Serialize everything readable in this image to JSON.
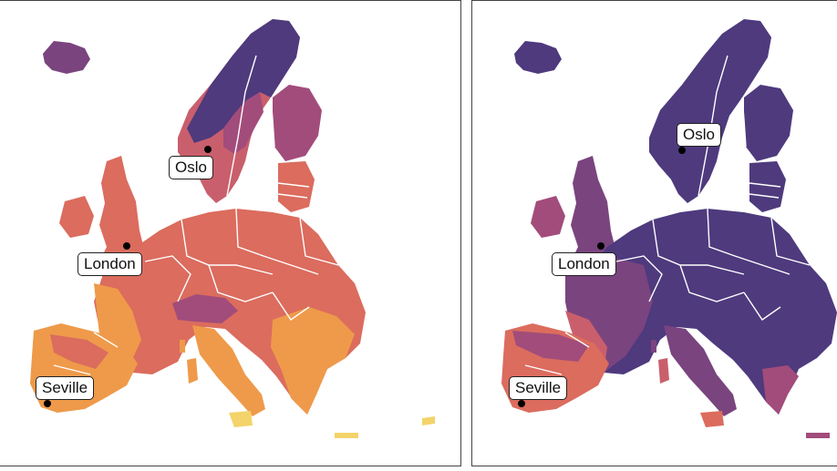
{
  "palette": {
    "purple": "#4e3a7d",
    "violet": "#7a447f",
    "magenta": "#a24c7b",
    "rose": "#c95f6c",
    "salmon": "#db6c5e",
    "orange": "#ee9a4a",
    "yellow": "#f3d36a",
    "border": "#ffffff"
  },
  "panels": [
    {
      "name": "left",
      "cities": [
        {
          "name": "Oslo"
        },
        {
          "name": "London"
        },
        {
          "name": "Seville"
        }
      ]
    },
    {
      "name": "right",
      "cities": [
        {
          "name": "Oslo"
        },
        {
          "name": "London"
        },
        {
          "name": "Seville"
        }
      ]
    }
  ]
}
